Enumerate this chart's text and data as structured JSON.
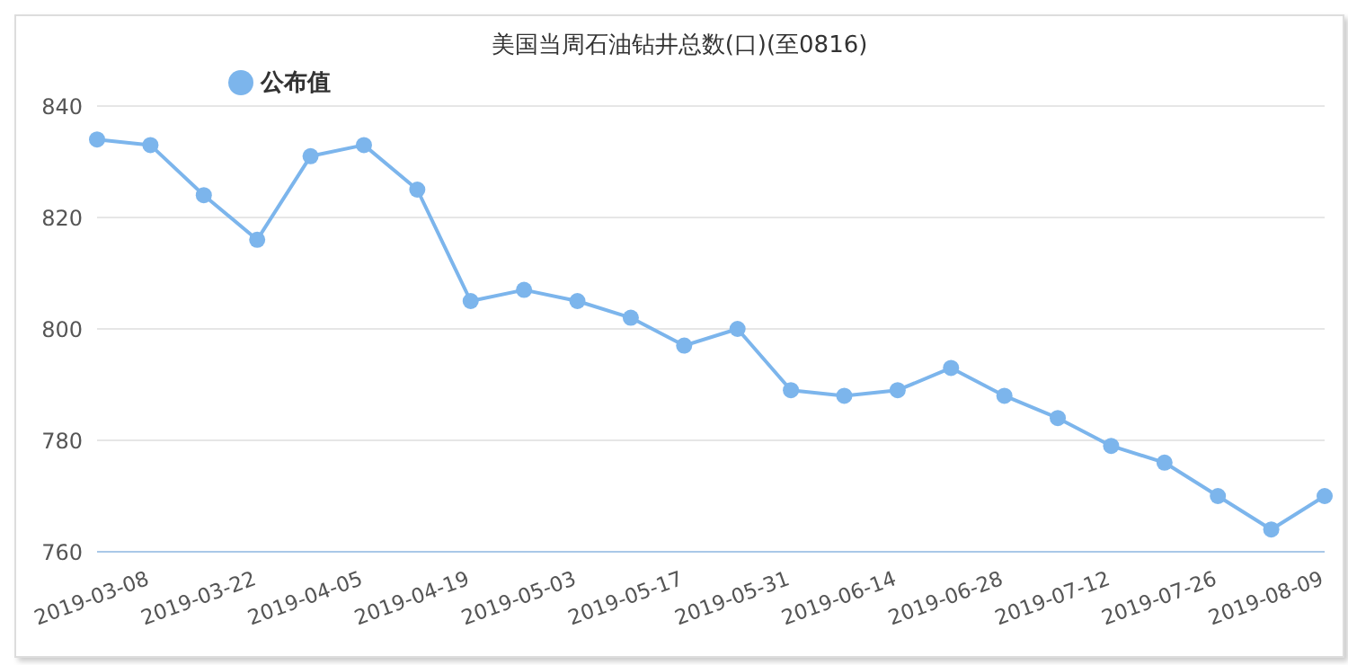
{
  "chart_data": {
    "type": "line",
    "title": "美国当周石油钻井总数(口)(至0816)",
    "categories": [
      null,
      "2019-03-08",
      null,
      "2019-03-22",
      null,
      "2019-04-05",
      null,
      "2019-04-19",
      null,
      "2019-05-03",
      null,
      "2019-05-17",
      null,
      "2019-05-31",
      null,
      "2019-06-14",
      null,
      "2019-06-28",
      null,
      "2019-07-12",
      null,
      "2019-07-26",
      null,
      "2019-08-09"
    ],
    "series": [
      {
        "name": "公布值",
        "color": "#7cb5ec",
        "values": [
          834,
          833,
          824,
          816,
          831,
          833,
          825,
          805,
          807,
          805,
          802,
          797,
          800,
          789,
          788,
          789,
          793,
          788,
          784,
          779,
          776,
          770,
          764,
          770
        ]
      }
    ],
    "ylim": [
      760,
      840
    ],
    "yticks": [
      760,
      780,
      800,
      820,
      840
    ],
    "grid": "y",
    "legend": "top left",
    "marker": "circle",
    "line_style": "solid"
  }
}
